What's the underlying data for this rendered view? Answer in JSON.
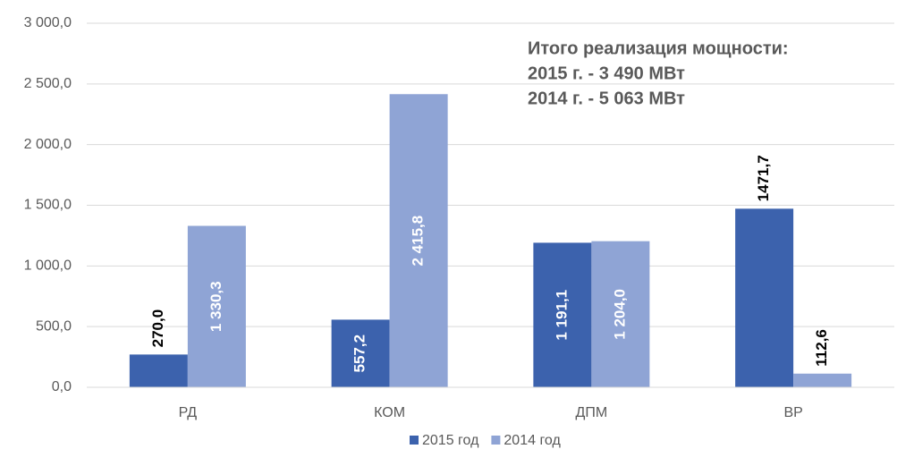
{
  "chart_data": {
    "type": "bar",
    "categories": [
      "РД",
      "КОМ",
      "ДПМ",
      "ВР"
    ],
    "series": [
      {
        "name": "2015 год",
        "color": "#3c62ad",
        "values": [
          270.0,
          557.2,
          1191.1,
          1471.7
        ],
        "value_labels": [
          "270,0",
          "557,2",
          "1 191,1",
          "1471,7"
        ],
        "label_positions": [
          "outside",
          "inside",
          "inside",
          "outside"
        ]
      },
      {
        "name": "2014 год",
        "color": "#8fa4d5",
        "values": [
          1330.3,
          2415.8,
          1204.0,
          112.6
        ],
        "value_labels": [
          "1 330,3",
          "2 415,8",
          "1 204,0",
          "112,6"
        ],
        "label_positions": [
          "inside",
          "inside",
          "inside",
          "outside"
        ]
      }
    ],
    "ylim": [
      0,
      3000
    ],
    "yticks": [
      {
        "value": 0,
        "label": "0,0"
      },
      {
        "value": 500,
        "label": "500,0"
      },
      {
        "value": 1000,
        "label": "1 000,0"
      },
      {
        "value": 1500,
        "label": "1 500,0"
      },
      {
        "value": 2000,
        "label": "2 000,0"
      },
      {
        "value": 2500,
        "label": "2 500,0"
      },
      {
        "value": 3000,
        "label": "3 000,0"
      }
    ],
    "grid": true,
    "legend": "bottom",
    "annotations": [
      "Итого реализация мощности:",
      "2015 г. - 3 490 МВт",
      "2014 г. - 5 063 МВт"
    ]
  }
}
